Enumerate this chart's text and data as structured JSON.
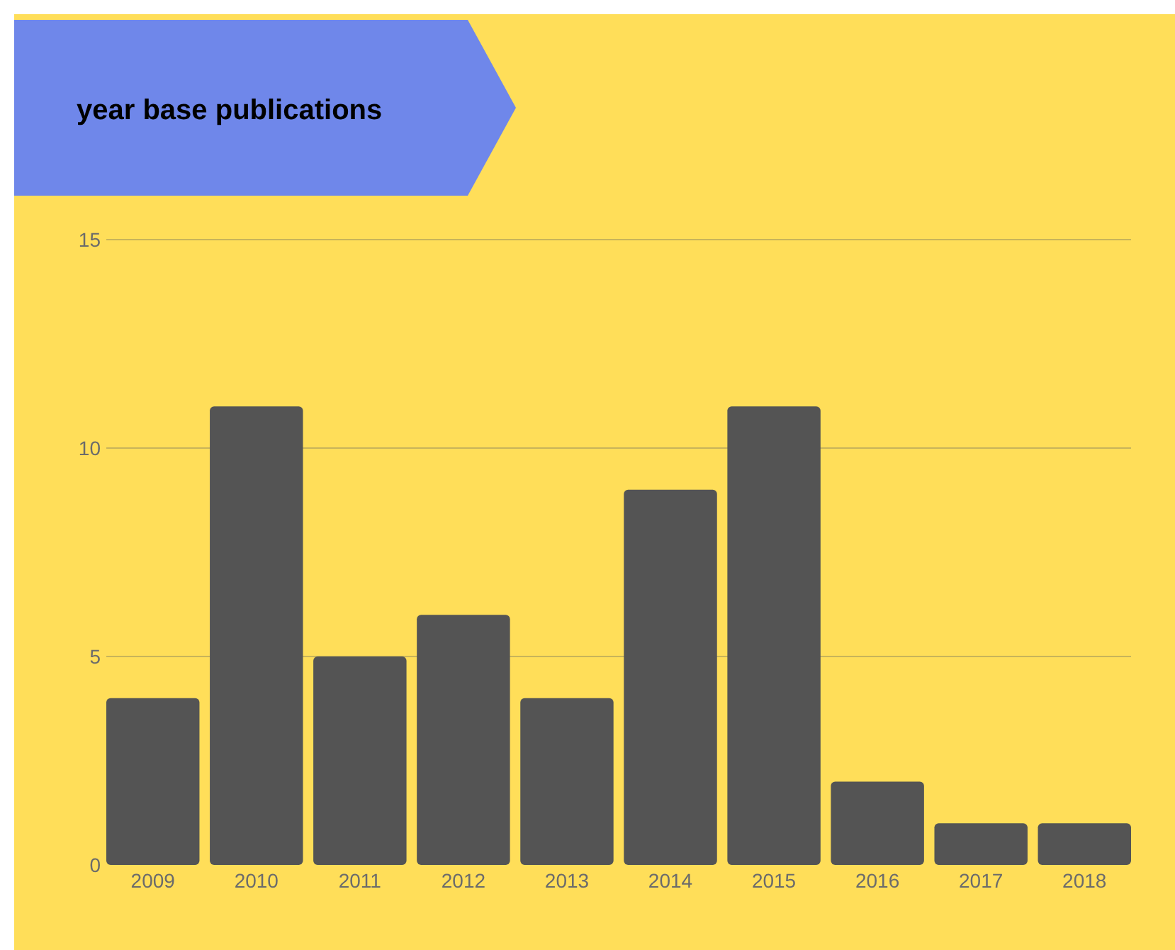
{
  "chart_data": {
    "type": "bar",
    "title": "year base publications",
    "categories": [
      "2009",
      "2010",
      "2011",
      "2012",
      "2013",
      "2014",
      "2015",
      "2016",
      "2017",
      "2018"
    ],
    "values": [
      4,
      11,
      5,
      6,
      4,
      9,
      11,
      2,
      1,
      1
    ],
    "color": "#545454",
    "ylim": [
      0,
      15
    ],
    "yticks": [
      0,
      5,
      10,
      15
    ],
    "grid": "y"
  }
}
